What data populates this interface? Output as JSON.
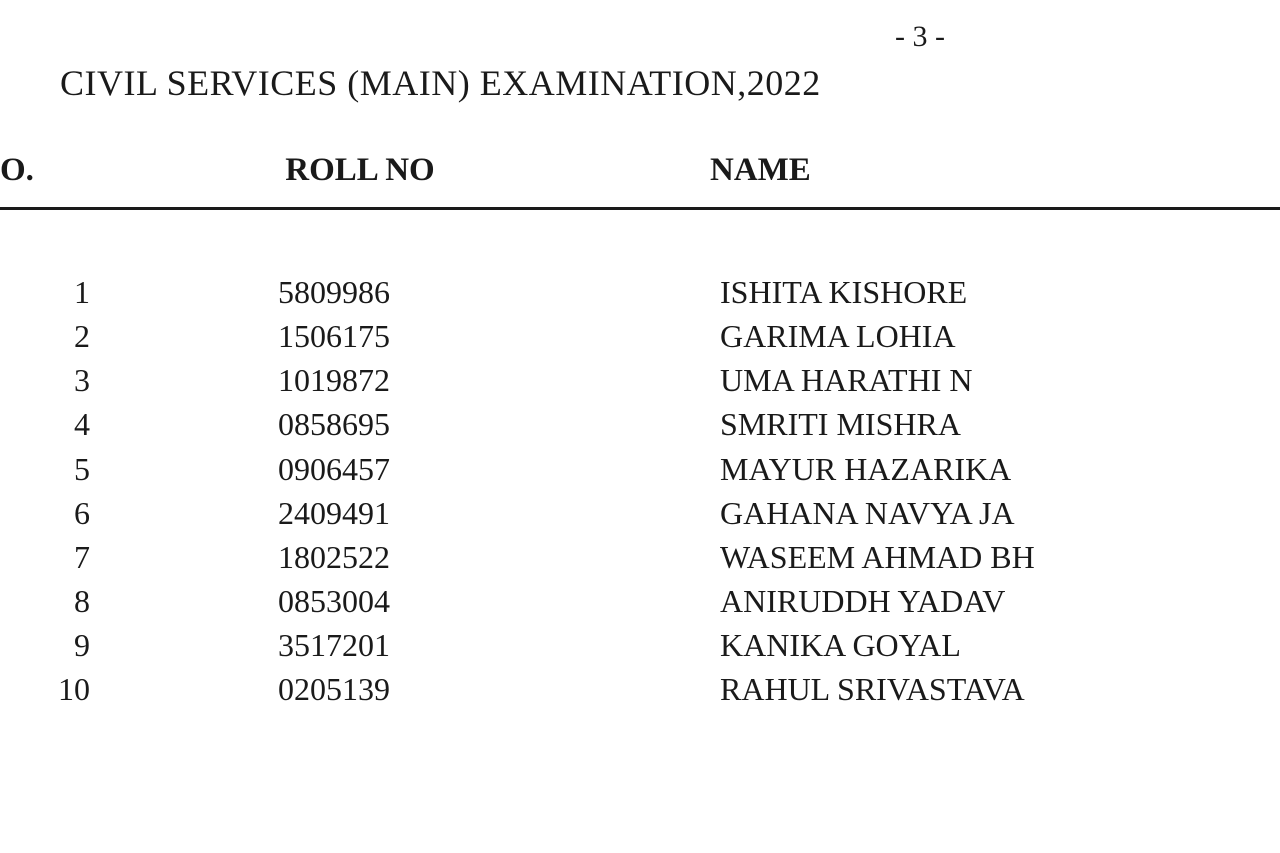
{
  "page_number": "- 3 -",
  "title": "CIVIL SERVICES (MAIN) EXAMINATION,2022",
  "table": {
    "columns": {
      "sno": "O.",
      "roll": "ROLL NO",
      "name": "NAME"
    },
    "rows": [
      {
        "sno": "1",
        "roll": "5809986",
        "name": "ISHITA KISHORE"
      },
      {
        "sno": "2",
        "roll": "1506175",
        "name": "GARIMA LOHIA"
      },
      {
        "sno": "3",
        "roll": "1019872",
        "name": "UMA HARATHI N"
      },
      {
        "sno": "4",
        "roll": "0858695",
        "name": "SMRITI MISHRA"
      },
      {
        "sno": "5",
        "roll": "0906457",
        "name": "MAYUR HAZARIKA"
      },
      {
        "sno": "6",
        "roll": "2409491",
        "name": "GAHANA NAVYA JA"
      },
      {
        "sno": "7",
        "roll": "1802522",
        "name": "WASEEM AHMAD BH"
      },
      {
        "sno": "8",
        "roll": "0853004",
        "name": "ANIRUDDH YADAV"
      },
      {
        "sno": "9",
        "roll": "3517201",
        "name": "KANIKA GOYAL"
      },
      {
        "sno": "10",
        "roll": "0205139",
        "name": "RAHUL SRIVASTAVA"
      }
    ]
  },
  "styles": {
    "background_color": "#ffffff",
    "text_color": "#1a1a1a",
    "font_family": "Times New Roman",
    "title_fontsize": 36,
    "header_fontsize": 33,
    "body_fontsize": 32,
    "divider_color": "#1a1a1a",
    "divider_width": 3
  }
}
